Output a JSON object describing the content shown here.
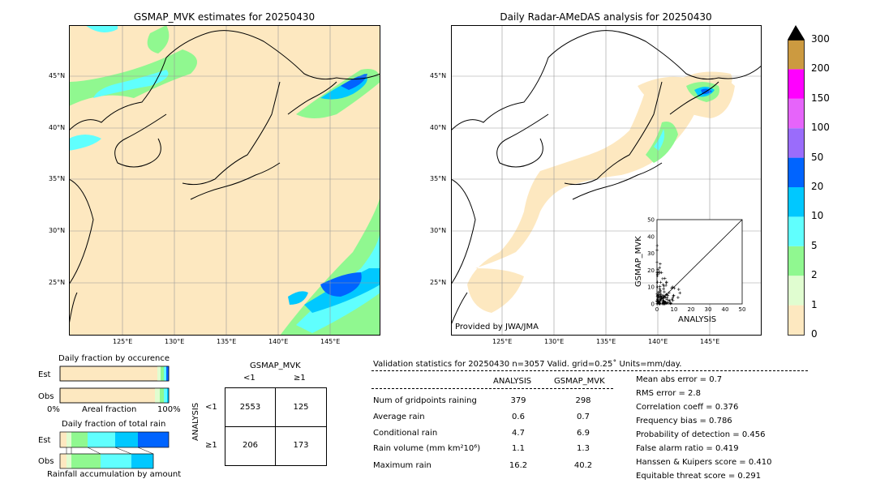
{
  "left_map": {
    "title": "GSMAP_MVK estimates for 20250430",
    "lat_labels": [
      "45°N",
      "40°N",
      "35°N",
      "30°N",
      "25°N"
    ],
    "lon_labels": [
      "125°E",
      "130°E",
      "135°E",
      "140°E",
      "145°E"
    ]
  },
  "right_map": {
    "title": "Daily Radar-AMeDAS analysis for 20250430",
    "lat_labels": [
      "45°N",
      "40°N",
      "35°N",
      "30°N",
      "25°N"
    ],
    "lon_labels": [
      "125°E",
      "130°E",
      "135°E",
      "140°E",
      "145°E"
    ],
    "credit": "Provided by JWA/JMA"
  },
  "colorbar": {
    "labels": [
      "0",
      "1",
      "2",
      "5",
      "10",
      "20",
      "50",
      "100",
      "150",
      "200",
      "300"
    ],
    "colors": [
      "#fde8c0",
      "#e0fdd0",
      "#90f890",
      "#60fffe",
      "#00c8ff",
      "#0064ff",
      "#9a6cfb",
      "#e664fa",
      "#ff00ff",
      "#cc9a40"
    ]
  },
  "scatter": {
    "xlabel": "ANALYSIS",
    "ylabel": "GSMAP_MVK",
    "ticks": [
      "0",
      "10",
      "20",
      "30",
      "40",
      "50"
    ]
  },
  "occurrence": {
    "title": "Daily fraction by occurence",
    "est_label": "Est",
    "obs_label": "Obs",
    "axis_left": "0%",
    "axis_mid": "Areal fraction",
    "axis_right": "100%"
  },
  "total_rain": {
    "title": "Daily fraction of total rain",
    "est_label": "Est",
    "obs_label": "Obs",
    "footer": "Rainfall accumulation by amount"
  },
  "contingency": {
    "title": "GSMAP_MVK",
    "col_lt": "<1",
    "col_ge": "≥1",
    "row_title": "ANALYSIS",
    "row_lt": "<1",
    "row_ge": "≥1",
    "c11": "2553",
    "c12": "125",
    "c21": "206",
    "c22": "173"
  },
  "validation": {
    "header": "Validation statistics for 20250430  n=3057 Valid. grid=0.25˚ Units=mm/day.",
    "col_analysis": "ANALYSIS",
    "col_gsmap": "GSMAP_MVK",
    "rows": [
      {
        "label": "Num of gridpoints raining",
        "a": "379",
        "g": "298"
      },
      {
        "label": "Average rain",
        "a": "0.6",
        "g": "0.7"
      },
      {
        "label": "Conditional rain",
        "a": "4.7",
        "g": "6.9"
      },
      {
        "label": "Rain volume (mm km²10⁶)",
        "a": "1.1",
        "g": "1.3"
      },
      {
        "label": "Maximum rain",
        "a": "16.2",
        "g": "40.2"
      }
    ],
    "scores": [
      "Mean abs error =    0.7",
      "RMS error =    2.8",
      "Correlation coeff =  0.376",
      "Frequency bias =  0.786",
      "Probability of detection =  0.456",
      "False alarm ratio =  0.419",
      "Hanssen & Kuipers score =  0.410",
      "Equitable threat score =  0.291"
    ]
  }
}
